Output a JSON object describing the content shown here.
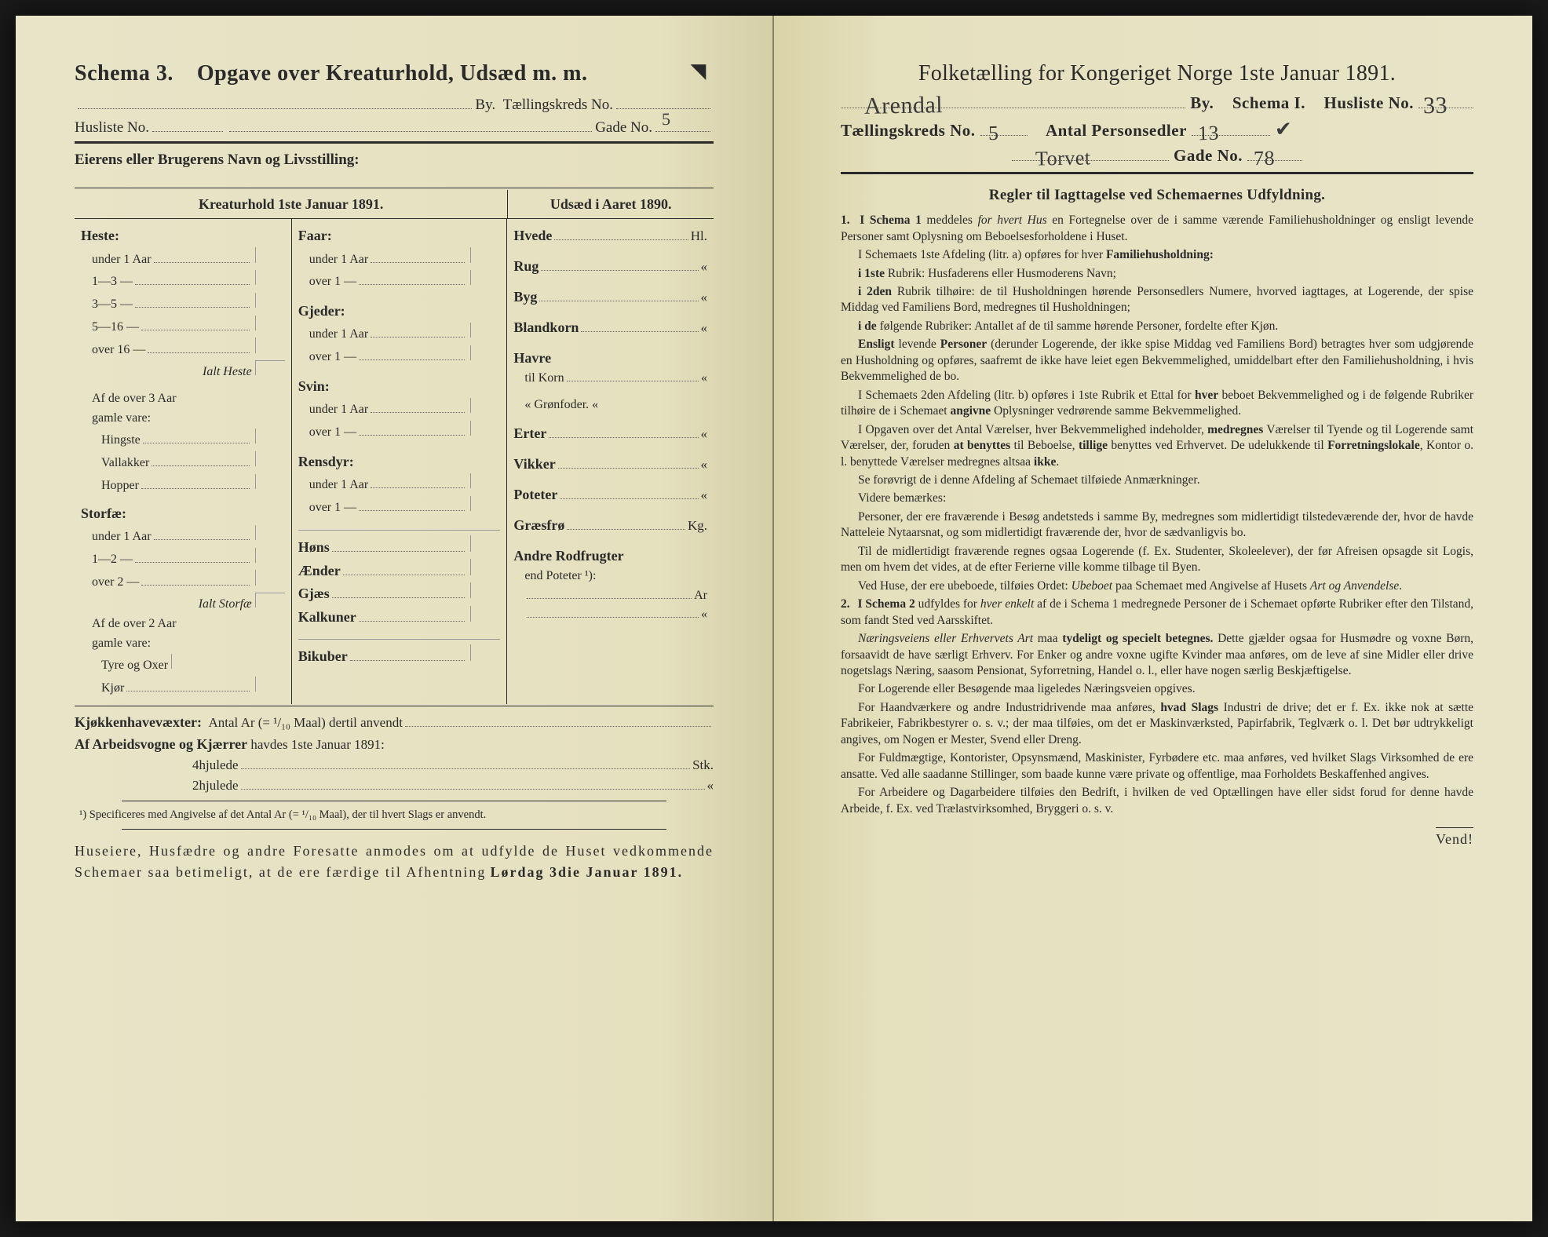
{
  "left": {
    "title_schema": "Schema 3.",
    "title_main": "Opgave over Kreaturhold, Udsæd m. m.",
    "line_by": "By.",
    "line_tk": "Tællingskreds No.",
    "line_husliste": "Husliste No.",
    "line_gade": "Gade No.",
    "gade_val": "5",
    "owner_label": "Eierens eller Brugerens Navn og Livsstilling:",
    "col_head_left": "Kreaturhold 1ste Januar 1891.",
    "col_head_right": "Udsæd i Aaret 1890.",
    "colA": {
      "heste": "Heste:",
      "u1": "under 1 Aar",
      "r13": "1—3   —",
      "r35": "3—5   —",
      "r516": "5—16  —",
      "r16": "over 16 —",
      "ialt_heste": "Ialt Heste",
      "af3": "Af de over 3 Aar",
      "gamle": "gamle vare:",
      "hingste": "Hingste",
      "vallakker": "Vallakker",
      "hopper": "Hopper",
      "storfae": "Storfæ:",
      "su1": "under 1 Aar",
      "s12": "1—2   —",
      "so2": "over 2  —",
      "ialt_storfae": "Ialt Storfæ",
      "af2": "Af de over 2 Aar",
      "gamle2": "gamle vare:",
      "tyre": "Tyre og Oxer",
      "kjor": "Kjør"
    },
    "colB": {
      "faar": "Faar:",
      "u1": "under 1 Aar",
      "o1": "over 1   —",
      "gjeder": "Gjeder:",
      "gu1": "under 1 Aar",
      "go1": "over 1   —",
      "svin": "Svin:",
      "su1": "under 1 Aar",
      "so1": "over 1   —",
      "rensdyr": "Rensdyr:",
      "ru1": "under 1 Aar",
      "ro1": "over 1   —",
      "hons": "Høns",
      "aender": "Ænder",
      "gjaes": "Gjæs",
      "kalkuner": "Kalkuner",
      "bikuber": "Bikuber"
    },
    "colC": {
      "hvede": "Hvede",
      "hvede_u": "Hl.",
      "rug": "Rug",
      "byg": "Byg",
      "blandkorn": "Blandkorn",
      "havre": "Havre",
      "tilkorn": "til Korn",
      "gronfoder": "«   Grønfoder.",
      "erter": "Erter",
      "vikker": "Vikker",
      "poteter": "Poteter",
      "graesfro": "Græsfrø",
      "graesfro_u": "Kg.",
      "andre": "Andre Rodfrugter",
      "end": "end Poteter ¹):",
      "ar": "Ar"
    },
    "kj_line": "Kjøkkenhavevæxter:",
    "kj_text": "Antal Ar (= ¹/₁₀ Maal) dertil anvendt",
    "af_line": "Af Arbeidsvogne og Kjærrer",
    "af_text": "havdes 1ste Januar 1891:",
    "hjul4": "4hjulede",
    "hjul4_u": "Stk.",
    "hjul2": "2hjulede",
    "footnote": "¹) Specificeres med Angivelse af det Antal Ar (= ¹/₁₀ Maal), der til hvert Slags er anvendt.",
    "closing": "Huseiere, Husfædre og andre Foresatte anmodes om at udfylde de Huset vedkommende Schemaer saa betimeligt, at de ere færdige til Afhentning",
    "closing_bold": "Lørdag 3die Januar 1891."
  },
  "right": {
    "title": "Folketælling for Kongeriget Norge 1ste Januar 1891.",
    "city_hand": "Arendal",
    "city_lbl": "By.",
    "schema_lbl": "Schema I.",
    "husliste_lbl": "Husliste No.",
    "husliste_val": "33",
    "tk_lbl": "Tællingskreds No.",
    "tk_val": "5",
    "antal_lbl": "Antal Personsedler",
    "antal_val": "13",
    "street_hand": "Torvet",
    "gade_lbl": "Gade No.",
    "gade_val": "78",
    "subtitle": "Regler til Iagttagelse ved Schemaernes Udfyldning.",
    "rules": [
      {
        "n": "1.",
        "html": "<span class='lead'>I Schema 1</span> meddeles <span class='it'>for hvert Hus</span> en Fortegnelse over de i samme værende Familiehusholdninger og ensligt levende Personer samt Oplysning om Beboelsesforholdene i Huset."
      },
      {
        "html": "I Schemaets 1ste Afdeling (litr. a) opføres for hver <span class='lead'>Familiehusholdning:</span>"
      },
      {
        "html": "<span class='lead'>i 1ste</span> Rubrik: Husfaderens eller Husmoderens Navn;"
      },
      {
        "html": "<span class='lead'>i 2den</span> Rubrik tilhøire: de til Husholdningen hørende Personsedlers Numere, hvorved iagttages, at Logerende, der spise Middag ved Familiens Bord, medregnes til Husholdningen;"
      },
      {
        "html": "<span class='lead'>i de</span> følgende Rubriker: Antallet af de til samme hørende Personer, fordelte efter Kjøn."
      },
      {
        "html": "<span class='lead'>Ensligt</span> levende <span class='lead'>Personer</span> (derunder Logerende, der ikke spise Middag ved Familiens Bord) betragtes hver som udgjørende en Husholdning og opføres, saafremt de ikke have leiet egen Bekvemmelighed, umiddelbart efter den Familiehusholdning, i hvis Bekvemmelighed de bo."
      },
      {
        "html": "I Schemaets 2den Afdeling (litr. b) opføres i 1ste Rubrik et Ettal for <span class='lead'>hver</span> beboet Bekvemmelighed og i de følgende Rubriker tilhøire de i Schemaet <span class='lead'>angivne</span> Oplysninger vedrørende samme Bekvemmelighed."
      },
      {
        "html": "I Opgaven over det Antal Værelser, hver Bekvemmelighed indeholder, <span class='lead'>medregnes</span> Værelser til Tyende og til Logerende samt Værelser, der, foruden <span class='lead'>at benyttes</span> til Beboelse, <span class='lead'>tillige</span> benyttes ved Erhvervet. De udelukkende til <span class='lead'>Forretningslokale</span>, Kontor o. l. benyttede Værelser medregnes altsaa <span class='lead'>ikke</span>."
      },
      {
        "html": "Se forøvrigt de i denne Afdeling af Schemaet tilføiede Anmærkninger."
      },
      {
        "html": "Videre bemærkes:"
      },
      {
        "html": "Personer, der ere fraværende i Besøg andetsteds i samme By, medregnes som midlertidigt tilstedeværende der, hvor de havde Natteleie Nytaarsnat, og som midlertidigt fraværende der, hvor de sædvanligvis bo."
      },
      {
        "html": "Til de midlertidigt fraværende regnes ogsaa Logerende (f. Ex. Studenter, Skoleelever), der før Afreisen opsagde sit Logis, men om hvem det vides, at de efter Ferierne ville komme tilbage til Byen."
      },
      {
        "html": "Ved Huse, der ere ubeboede, tilføies Ordet: <span class='it'>Ubeboet</span> paa Schemaet med Angivelse af Husets <span class='it'>Art og Anvendelse</span>."
      },
      {
        "n": "2.",
        "html": "<span class='lead'>I Schema 2</span> udfyldes for <span class='it'>hver enkelt</span> af de i Schema 1 medregnede Personer de i Schemaet opførte Rubriker efter den Tilstand, som fandt Sted ved Aarsskiftet."
      },
      {
        "html": "<span class='it'>Næringsveiens eller Erhvervets Art</span> maa <span class='lead'>tydeligt og specielt betegnes.</span> Dette gjælder ogsaa for Husmødre og voxne Børn, forsaavidt de have særligt Erhverv. For Enker og andre voxne ugifte Kvinder maa anføres, om de leve af sine Midler eller drive nogetslags Næring, saasom Pensionat, Syforretning, Handel o. l., eller have nogen særlig Beskjæftigelse."
      },
      {
        "html": "For Logerende eller Besøgende maa ligeledes Næringsveien opgives."
      },
      {
        "html": "For Haandværkere og andre Industridrivende maa anføres, <span class='lead'>hvad Slags</span> Industri de drive; det er f. Ex. ikke nok at sætte Fabrikeier, Fabrikbestyrer o. s. v.; der maa tilføies, om det er Maskinværksted, Papirfabrik, Teglværk o. l. Det bør udtrykkeligt angives, om Nogen er Mester, Svend eller Dreng."
      },
      {
        "html": "For Fuldmægtige, Kontorister, Opsynsmænd, Maskinister, Fyrbødere etc. maa anføres, ved hvilket Slags Virksomhed de ere ansatte. Ved alle saadanne Stillinger, som baade kunne være private og offentlige, maa Forholdets Beskaffenhed angives."
      },
      {
        "html": "For Arbeidere og Dagarbeidere tilføies den Bedrift, i hvilken de ved Optællingen have eller sidst forud for denne havde Arbeide, f. Ex. ved Trælastvirksomhed, Bryggeri o. s. v."
      }
    ],
    "vend": "Vend!"
  },
  "colors": {
    "paper": "#e5e0be",
    "ink": "#2a2a2a"
  }
}
